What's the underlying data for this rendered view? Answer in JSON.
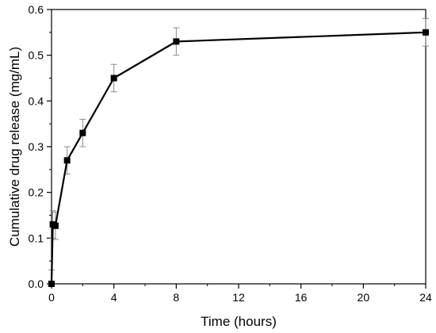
{
  "chart_data": {
    "type": "line",
    "title": "",
    "xlabel": "Time (hours)",
    "ylabel": "Cumulative drug release (mg/mL)",
    "xlim": [
      0,
      24
    ],
    "ylim": [
      0,
      0.6
    ],
    "x_ticks": [
      0,
      4,
      8,
      12,
      16,
      20,
      24
    ],
    "y_ticks": [
      0.0,
      0.1,
      0.2,
      0.3,
      0.4,
      0.5,
      0.6
    ],
    "x_tick_labels": [
      "0",
      "4",
      "8",
      "12",
      "16",
      "20",
      "24"
    ],
    "y_tick_labels": [
      "0.0",
      "0.1",
      "0.2",
      "0.3",
      "0.4",
      "0.5",
      "0.6"
    ],
    "grid": false,
    "legend": false,
    "series": [
      {
        "marker": "square",
        "color": "#000000",
        "error_color": "#8c8c8c",
        "x": [
          0,
          0.083,
          0.25,
          1,
          2,
          4,
          8,
          24
        ],
        "y": [
          0.0,
          0.13,
          0.127,
          0.27,
          0.33,
          0.45,
          0.53,
          0.55
        ],
        "error": [
          0.03,
          0.03,
          0.03,
          0.03,
          0.03,
          0.03,
          0.03,
          0.03
        ]
      }
    ]
  }
}
